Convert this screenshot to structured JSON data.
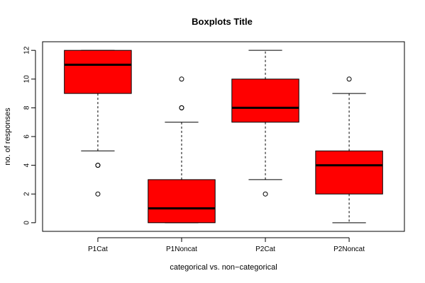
{
  "chart_data": {
    "type": "boxplot",
    "title": "Boxplots Title",
    "xlabel": "categorical vs. non−categorical",
    "ylabel": "no. of responses",
    "ylim": [
      -0.6,
      12.6
    ],
    "yticks": [
      0,
      2,
      4,
      6,
      8,
      10,
      12
    ],
    "grid": false,
    "box_color": "#ff0000",
    "categories": [
      "P1Cat",
      "P1Noncat",
      "P2Cat",
      "P2Noncat"
    ],
    "boxes": [
      {
        "name": "P1Cat",
        "whisker_low": 5,
        "q1": 9,
        "median": 11,
        "q3": 12,
        "whisker_high": 12,
        "outliers": [
          4,
          4,
          2
        ]
      },
      {
        "name": "P1Noncat",
        "whisker_low": 0,
        "q1": 0,
        "median": 1,
        "q3": 3,
        "whisker_high": 7,
        "outliers": [
          8,
          8,
          10
        ]
      },
      {
        "name": "P2Cat",
        "whisker_low": 3,
        "q1": 7,
        "median": 8,
        "q3": 10,
        "whisker_high": 12,
        "outliers": [
          2
        ]
      },
      {
        "name": "P2Noncat",
        "whisker_low": 0,
        "q1": 2,
        "median": 4,
        "q3": 5,
        "whisker_high": 9,
        "outliers": [
          10
        ]
      }
    ]
  }
}
